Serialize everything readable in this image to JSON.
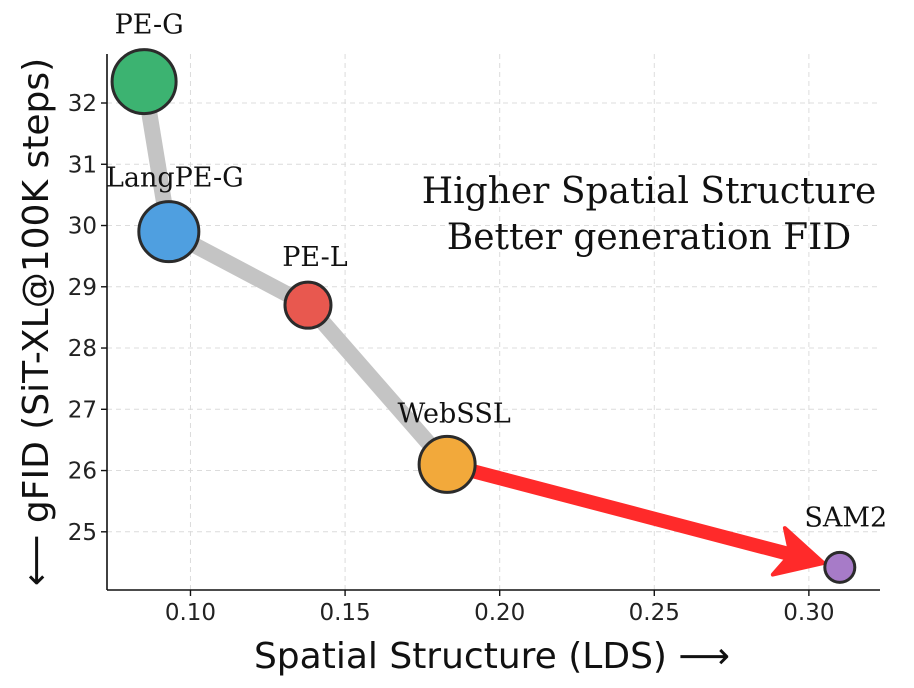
{
  "chart_data": {
    "type": "scatter",
    "xlabel": "Spatial Structure (LDS) ⟶",
    "ylabel": "⟵ gFID (SiT-XL@100K steps)",
    "xlim": [
      0.073,
      0.323
    ],
    "ylim": [
      24.05,
      32.8
    ],
    "xticks": [
      0.1,
      0.15,
      0.2,
      0.25,
      0.3
    ],
    "xtick_labels": [
      "0.10",
      "0.15",
      "0.20",
      "0.25",
      "0.30"
    ],
    "yticks": [
      25,
      26,
      27,
      28,
      29,
      30,
      31,
      32
    ],
    "ytick_labels": [
      "25",
      "26",
      "27",
      "28",
      "29",
      "30",
      "31",
      "32"
    ],
    "grid": true,
    "points": [
      {
        "label": "PE-G",
        "x": 0.085,
        "y": 32.35,
        "color": "#3cb371",
        "size": 32
      },
      {
        "label": "LangPE-G",
        "x": 0.093,
        "y": 29.9,
        "color": "#4f9fe0",
        "size": 30
      },
      {
        "label": "PE-L",
        "x": 0.138,
        "y": 28.7,
        "color": "#e8584f",
        "size": 23
      },
      {
        "label": "WebSSL",
        "x": 0.183,
        "y": 26.1,
        "color": "#f2a93b",
        "size": 28
      },
      {
        "label": "SAM2",
        "x": 0.31,
        "y": 24.42,
        "color": "#a77bc8",
        "size": 15
      }
    ],
    "trend_line_color": "#c4c4c4",
    "arrow_color": "#ff2a2a",
    "annotation": [
      "Higher Spatial Structure",
      "Better generation FID"
    ]
  }
}
